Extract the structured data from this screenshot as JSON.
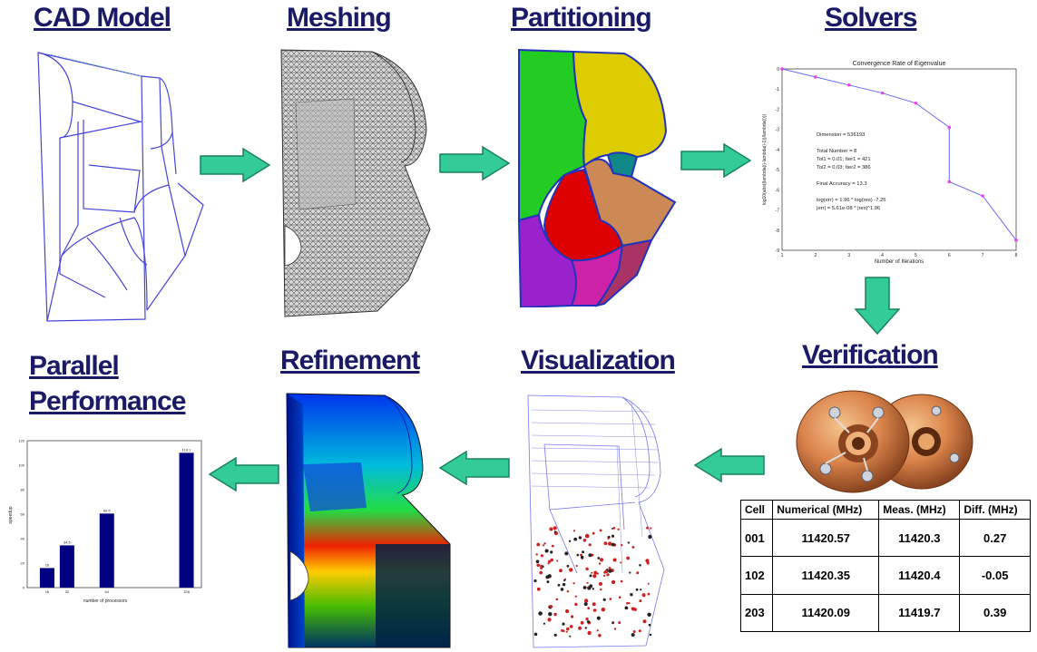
{
  "steps": {
    "cad_model": "CAD Model",
    "meshing": "Meshing",
    "partitioning": "Partitioning",
    "solvers": "Solvers",
    "verification": "Verification",
    "visualization": "Visualization",
    "refinement": "Refinement",
    "parallel_performance_line1": "Parallel",
    "parallel_performance_line2": "Performance"
  },
  "colors": {
    "title": "#1a1a66",
    "arrow_fill": "#33cc99",
    "arrow_stroke": "#1a8060",
    "wire": "#4444dd",
    "bar": "#000080"
  },
  "icons": {
    "flow_arrow": "block-arrow-icon"
  },
  "verification_table": {
    "headers": [
      "Cell",
      "Numerical (MHz)",
      "Meas. (MHz)",
      "Diff. (MHz)"
    ],
    "rows": [
      [
        "001",
        "11420.57",
        "11420.3",
        "0.27"
      ],
      [
        "102",
        "11420.35",
        "11420.4",
        "-0.05"
      ],
      [
        "203",
        "11420.09",
        "11419.7",
        "0.39"
      ]
    ]
  },
  "solver_plot": {
    "title": "Convergence Rate of Eigenvalue",
    "xlabel": "Number of Iterations",
    "ylabel": "log10(abs((lambda(i)-lambda(i-1))/lambda(i)))",
    "annotations": [
      "Dimension = 536193",
      "Total Number = 8",
      "Tol1 = 0.01;    Iter1 = 421",
      "Tol2 = 0.03;    Iter2 = 386",
      "Final Accuracy = 13.3",
      "log(err) = 1.96 * log(res) -7.25",
      "|err| = 5.61e-08 * |res|^1.96"
    ],
    "x_ticks": [
      "1",
      "2",
      "3",
      "4",
      "5",
      "6",
      "7",
      "8"
    ],
    "y_ticks": [
      "0",
      "-1",
      "-2",
      "-3",
      "-4",
      "-5",
      "-6",
      "-7",
      "-8",
      "-9"
    ]
  },
  "chart_data": [
    {
      "type": "line",
      "title": "Convergence Rate of Eigenvalue",
      "xlabel": "Number of Iterations",
      "ylabel": "log10(abs((lambda(i)-lambda(i-1))/lambda(i)))",
      "x": [
        1,
        2,
        3,
        4,
        5,
        6,
        6,
        7,
        8
      ],
      "values": [
        0,
        -0.4,
        -0.8,
        -1.2,
        -1.7,
        -2.9,
        -5.6,
        -6.3,
        -8.5
      ],
      "xlim": [
        1,
        8
      ],
      "ylim": [
        -9,
        0
      ]
    },
    {
      "type": "bar",
      "xlabel": "number of processors",
      "ylabel": "speedup",
      "categories": [
        "16",
        "32",
        "64",
        "128"
      ],
      "x": [
        16,
        32,
        64,
        128
      ],
      "values": [
        16,
        34.5,
        60.5,
        110.1
      ],
      "value_labels": [
        "16",
        "34.5",
        "60.5",
        "110.1"
      ],
      "ylim": [
        0,
        120
      ],
      "y_ticks": [
        "0",
        "20",
        "40",
        "60",
        "80",
        "100",
        "120"
      ]
    }
  ]
}
